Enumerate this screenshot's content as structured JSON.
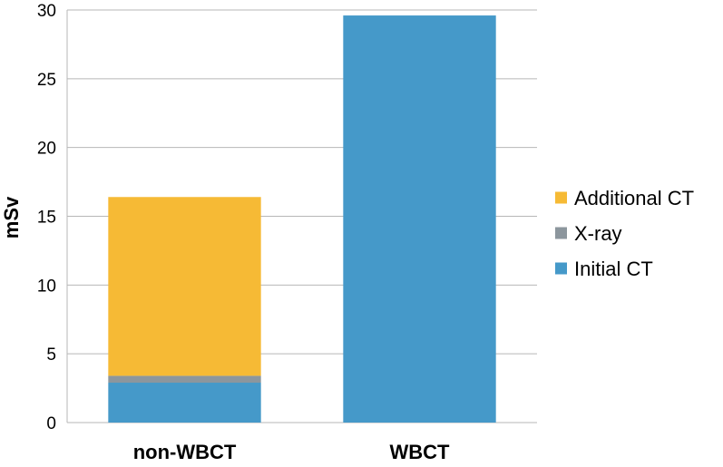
{
  "chart_data": {
    "type": "bar",
    "stacked": true,
    "categories": [
      "non-WBCT",
      "WBCT"
    ],
    "series": [
      {
        "name": "Initial CT",
        "values": [
          2.9,
          29.6
        ],
        "color": "#4599C9"
      },
      {
        "name": "X-ray",
        "values": [
          0.5,
          0
        ],
        "color": "#8C969D"
      },
      {
        "name": "Additional CT",
        "values": [
          13.0,
          0
        ],
        "color": "#F6BA35"
      }
    ],
    "title": "",
    "xlabel": "",
    "ylabel": "mSv",
    "ylim": [
      0,
      30
    ],
    "yticks": [
      0,
      5,
      10,
      15,
      20,
      25,
      30
    ],
    "grid": true,
    "legend_position": "right",
    "legend_order": [
      "Additional CT",
      "X-ray",
      "Initial CT"
    ]
  }
}
